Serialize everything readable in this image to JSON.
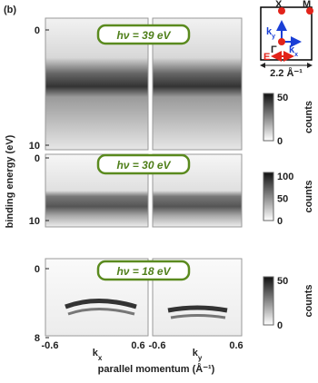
{
  "figure_label": "(b)",
  "y_axis_label": "binding energy (eV)",
  "x_axis_label": "parallel momentum (Å⁻¹)",
  "rows": [
    {
      "photon_label": "hν = 39 eV",
      "y_ticks": [
        "0",
        "10"
      ],
      "colorbar_ticks": [
        "50",
        "0"
      ],
      "colorbar_label": "counts"
    },
    {
      "photon_label": "hν = 30 eV",
      "y_ticks": [
        "0",
        "10"
      ],
      "colorbar_ticks": [
        "100",
        "50",
        "0"
      ],
      "colorbar_label": "counts"
    },
    {
      "photon_label": "hν = 18 eV",
      "y_ticks": [
        "0",
        "8"
      ],
      "colorbar_ticks": [
        "50",
        "0"
      ],
      "colorbar_label": "counts"
    }
  ],
  "x_ticks": [
    "-0.6",
    {
      "base": "k",
      "sub": "x"
    },
    "0.6",
    "-0.6",
    {
      "base": "k",
      "sub": "y"
    },
    "0.6"
  ],
  "inset": {
    "x_point": "X̄",
    "m_point": "M̄",
    "gamma_point": "Γ",
    "ky": {
      "base": "k",
      "sub": "y"
    },
    "kx": {
      "base": "k",
      "sub": "x"
    },
    "e_label": "E",
    "scale_label": "2.2 Å⁻¹"
  }
}
